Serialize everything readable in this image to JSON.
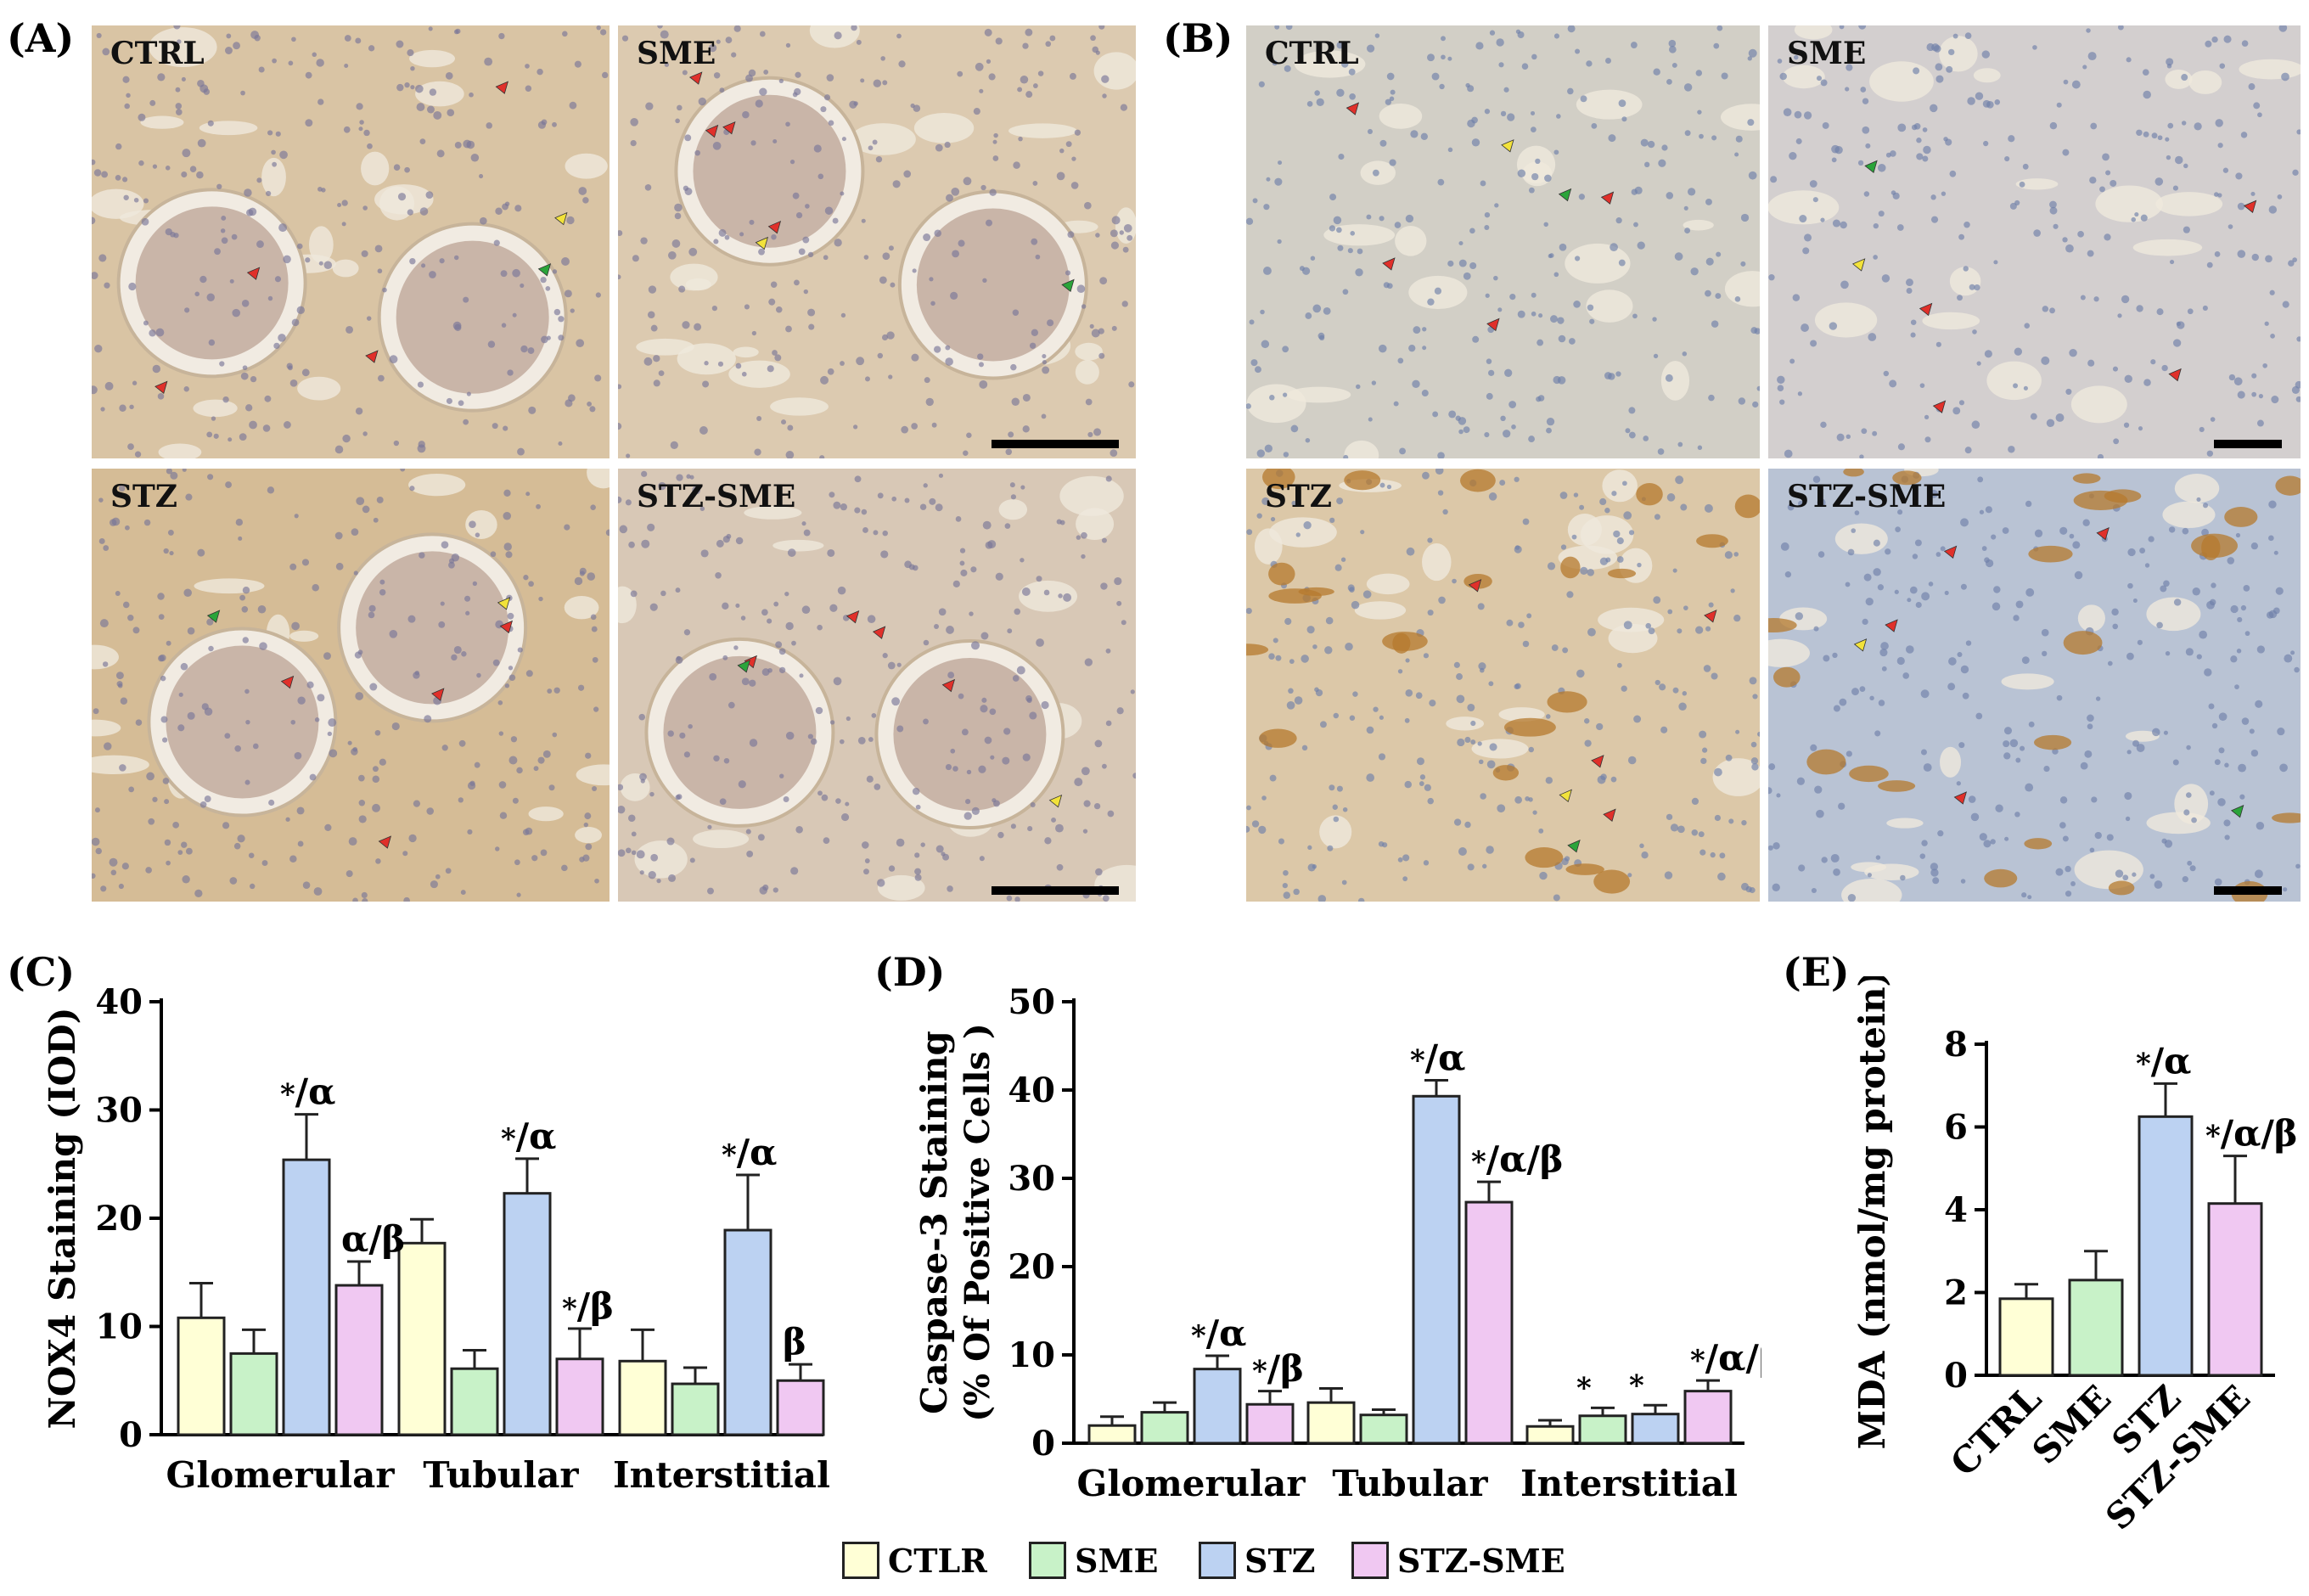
{
  "panel_labels": {
    "A": "(A)",
    "B": "(B)",
    "C": "(C)",
    "D": "(D)",
    "E": "(E)"
  },
  "micrographs": {
    "A": {
      "tiles": [
        {
          "label": "CTRL",
          "tone": "#d9c4a4"
        },
        {
          "label": "SME",
          "tone": "#dccab0"
        },
        {
          "label": "STZ",
          "tone": "#d5bc96"
        },
        {
          "label": "STZ-SME",
          "tone": "#d8c8b6"
        }
      ]
    },
    "B": {
      "tiles": [
        {
          "label": "CTRL",
          "tone": "#d2cfc6"
        },
        {
          "label": "SME",
          "tone": "#d3cfcf"
        },
        {
          "label": "STZ",
          "tone": "#dcc8a8"
        },
        {
          "label": "STZ-SME",
          "tone": "#b9c3d4"
        }
      ]
    }
  },
  "legend": [
    {
      "label": "CTLR",
      "color": "#ffffd6"
    },
    {
      "label": "SME",
      "color": "#c8f2c8"
    },
    {
      "label": "STZ",
      "color": "#bcd2f2"
    },
    {
      "label": "STZ-SME",
      "color": "#f0c8f2"
    }
  ],
  "chart_data": [
    {
      "type": "bar",
      "panel": "C",
      "ylabel": "NOX4 Staining (IOD)",
      "categories": [
        "Glomerular",
        "Tubular",
        "Interstitial"
      ],
      "ylim": [
        0,
        40
      ],
      "yticks": [
        "0",
        "10",
        "20",
        "30",
        "40"
      ],
      "series": [
        {
          "name": "CTLR",
          "values": [
            10.8,
            17.7,
            6.8
          ],
          "errors": [
            3.2,
            2.2,
            2.9
          ]
        },
        {
          "name": "SME",
          "values": [
            7.5,
            6.1,
            4.7
          ],
          "errors": [
            2.2,
            1.7,
            1.5
          ]
        },
        {
          "name": "STZ",
          "values": [
            25.4,
            22.3,
            18.9
          ],
          "errors": [
            4.2,
            3.2,
            5.1
          ]
        },
        {
          "name": "STZ-SME",
          "values": [
            13.8,
            7.0,
            5.0
          ],
          "errors": [
            2.2,
            2.8,
            1.5
          ]
        }
      ],
      "annotations": [
        {
          "category": 0,
          "series": 2,
          "star": "*",
          "text": "/α"
        },
        {
          "category": 0,
          "series": 3,
          "star": "",
          "text": "α/β"
        },
        {
          "category": 1,
          "series": 2,
          "star": "*",
          "text": "/α"
        },
        {
          "category": 1,
          "series": 3,
          "star": "*",
          "text": "/β"
        },
        {
          "category": 2,
          "series": 2,
          "star": "*",
          "text": "/α"
        },
        {
          "category": 2,
          "series": 3,
          "star": "",
          "text": "β"
        }
      ]
    },
    {
      "type": "bar",
      "panel": "D",
      "ylabel": "Caspase-3 Staining",
      "ylabel2": "(% Of Positive Cells )",
      "categories": [
        "Glomerular",
        "Tubular",
        "Interstitial"
      ],
      "ylim": [
        0,
        50
      ],
      "yticks": [
        "0",
        "10",
        "20",
        "30",
        "40",
        "50"
      ],
      "series": [
        {
          "name": "CTLR",
          "values": [
            2.0,
            4.6,
            1.9
          ],
          "errors": [
            1.0,
            1.6,
            0.7
          ]
        },
        {
          "name": "SME",
          "values": [
            3.5,
            3.2,
            3.1
          ],
          "errors": [
            1.1,
            0.6,
            0.9
          ]
        },
        {
          "name": "STZ",
          "values": [
            8.4,
            39.3,
            3.3
          ],
          "errors": [
            1.5,
            1.8,
            1.0
          ]
        },
        {
          "name": "STZ-SME",
          "values": [
            4.4,
            27.3,
            5.9
          ],
          "errors": [
            1.5,
            2.3,
            1.2
          ]
        }
      ],
      "annotations": [
        {
          "category": 0,
          "series": 2,
          "star": "*",
          "text": "/α"
        },
        {
          "category": 0,
          "series": 3,
          "star": "*",
          "text": "/β"
        },
        {
          "category": 1,
          "series": 2,
          "star": "*",
          "text": "/α"
        },
        {
          "category": 1,
          "series": 3,
          "star": "*",
          "text": "/α/β"
        },
        {
          "category": 2,
          "series": 1,
          "star": "*",
          "text": ""
        },
        {
          "category": 2,
          "series": 2,
          "star": "*",
          "text": ""
        },
        {
          "category": 2,
          "series": 3,
          "star": "*",
          "text": "/α/β"
        }
      ]
    },
    {
      "type": "bar",
      "panel": "E",
      "ylabel": "MDA (nmol/mg protein)",
      "categories": [
        "CTRL",
        "SME",
        "STZ",
        "STZ-SME"
      ],
      "ylim": [
        0,
        8
      ],
      "yticks": [
        "0",
        "2",
        "4",
        "6",
        "8"
      ],
      "series": [
        {
          "name": "",
          "values": [
            1.85,
            2.3,
            6.25,
            4.15
          ],
          "errors": [
            0.35,
            0.7,
            0.8,
            1.15
          ]
        }
      ],
      "annotations": [
        {
          "category": 2,
          "series": 0,
          "star": "*",
          "text": "/α"
        },
        {
          "category": 3,
          "series": 0,
          "star": "*",
          "text": "/α/β"
        }
      ]
    }
  ]
}
